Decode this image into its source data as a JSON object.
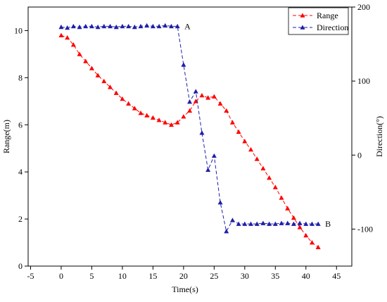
{
  "chart_data": {
    "type": "line",
    "x_label": "Time(s)",
    "y_label": "Range(m)",
    "y2_label": "Direction(°)",
    "x": [
      0,
      1,
      2,
      3,
      4,
      5,
      6,
      7,
      8,
      9,
      10,
      11,
      12,
      13,
      14,
      15,
      16,
      17,
      18,
      19,
      20,
      21,
      22,
      23,
      24,
      25,
      26,
      27,
      28,
      29,
      30,
      31,
      32,
      33,
      34,
      35,
      36,
      37,
      38,
      39,
      40,
      41,
      42
    ],
    "series": [
      {
        "name": "Range",
        "color": "#ff0000",
        "axis": "y",
        "values": [
          9.8,
          9.7,
          9.4,
          9.0,
          8.7,
          8.4,
          8.1,
          7.85,
          7.6,
          7.35,
          7.1,
          6.9,
          6.7,
          6.5,
          6.4,
          6.3,
          6.2,
          6.1,
          6.0,
          6.1,
          6.35,
          6.6,
          7.0,
          7.25,
          7.15,
          7.2,
          6.9,
          6.6,
          6.1,
          5.7,
          5.3,
          4.95,
          4.55,
          4.15,
          3.75,
          3.35,
          2.9,
          2.45,
          2.05,
          1.65,
          1.3,
          1.0,
          0.8
        ]
      },
      {
        "name": "Direction",
        "color": "#1f1fa8",
        "axis": "y2",
        "values": [
          173,
          172,
          174,
          173,
          174,
          174,
          173,
          174,
          174,
          173,
          174,
          174,
          173,
          174,
          175,
          174,
          174,
          175,
          174,
          174,
          122,
          72,
          86,
          30,
          -20,
          -1,
          -64,
          -103,
          -88,
          -93,
          -93,
          -93,
          -93,
          -92,
          -93,
          -93,
          -92,
          -92,
          -93,
          -92,
          -93,
          -93,
          -93
        ]
      }
    ],
    "annotations": [
      "A",
      "B"
    ],
    "xlim": [
      -5.4,
      47.5
    ],
    "xticks": [
      -5,
      0,
      5,
      10,
      15,
      20,
      25,
      30,
      35,
      40,
      45
    ],
    "ylim": [
      0,
      11
    ],
    "yticks": [
      0,
      2,
      4,
      6,
      8,
      10
    ],
    "y2lim": [
      -150,
      200
    ],
    "y2ticks": [
      -100,
      0,
      100,
      200
    ],
    "grid": false,
    "legend": "top-right"
  }
}
